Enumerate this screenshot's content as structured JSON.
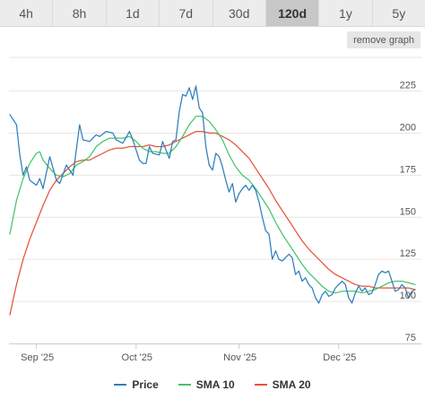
{
  "range_tabs": {
    "items": [
      {
        "label": "4h",
        "active": false
      },
      {
        "label": "8h",
        "active": false
      },
      {
        "label": "1d",
        "active": false
      },
      {
        "label": "7d",
        "active": false
      },
      {
        "label": "30d",
        "active": false
      },
      {
        "label": "120d",
        "active": true
      },
      {
        "label": "1y",
        "active": false
      },
      {
        "label": "5y",
        "active": false
      }
    ]
  },
  "remove_graph_label": "remove graph",
  "chart_data": {
    "type": "line",
    "title": "",
    "xlabel": "",
    "ylabel": "",
    "grid": true,
    "legend_position": "bottom",
    "x_ticks": [
      "Sep '25",
      "Oct '25",
      "Nov '25",
      "Dec '25"
    ],
    "x_range": [
      "2025-08-24",
      "2025-12-24"
    ],
    "y_ticks": [
      75,
      100,
      125,
      150,
      175,
      200,
      225
    ],
    "ylim": [
      75,
      245
    ],
    "series": [
      {
        "name": "Price",
        "color": "#2f7ebc",
        "points": [
          [
            "2025-08-24",
            211
          ],
          [
            "2025-08-26",
            205
          ],
          [
            "2025-08-27",
            187
          ],
          [
            "2025-08-28",
            175
          ],
          [
            "2025-08-29",
            180
          ],
          [
            "2025-08-30",
            172
          ],
          [
            "2025-09-01",
            169
          ],
          [
            "2025-09-02",
            173
          ],
          [
            "2025-09-03",
            167
          ],
          [
            "2025-09-05",
            186
          ],
          [
            "2025-09-07",
            172
          ],
          [
            "2025-09-08",
            170
          ],
          [
            "2025-09-10",
            181
          ],
          [
            "2025-09-12",
            175
          ],
          [
            "2025-09-14",
            205
          ],
          [
            "2025-09-15",
            196
          ],
          [
            "2025-09-17",
            195
          ],
          [
            "2025-09-19",
            199
          ],
          [
            "2025-09-20",
            198
          ],
          [
            "2025-09-22",
            201
          ],
          [
            "2025-09-24",
            200
          ],
          [
            "2025-09-25",
            196
          ],
          [
            "2025-09-27",
            194
          ],
          [
            "2025-09-29",
            201
          ],
          [
            "2025-09-30",
            196
          ],
          [
            "2025-10-01",
            190
          ],
          [
            "2025-10-02",
            184
          ],
          [
            "2025-10-03",
            182
          ],
          [
            "2025-10-04",
            182
          ],
          [
            "2025-10-05",
            192
          ],
          [
            "2025-10-06",
            188
          ],
          [
            "2025-10-08",
            187
          ],
          [
            "2025-10-09",
            195
          ],
          [
            "2025-10-10",
            190
          ],
          [
            "2025-10-11",
            185
          ],
          [
            "2025-10-12",
            195
          ],
          [
            "2025-10-13",
            196
          ],
          [
            "2025-10-14",
            213
          ],
          [
            "2025-10-15",
            223
          ],
          [
            "2025-10-16",
            222
          ],
          [
            "2025-10-17",
            227
          ],
          [
            "2025-10-18",
            220
          ],
          [
            "2025-10-19",
            228
          ],
          [
            "2025-10-20",
            215
          ],
          [
            "2025-10-21",
            212
          ],
          [
            "2025-10-22",
            192
          ],
          [
            "2025-10-23",
            181
          ],
          [
            "2025-10-24",
            178
          ],
          [
            "2025-10-25",
            188
          ],
          [
            "2025-10-26",
            186
          ],
          [
            "2025-10-27",
            180
          ],
          [
            "2025-10-28",
            172
          ],
          [
            "2025-10-29",
            165
          ],
          [
            "2025-10-30",
            170
          ],
          [
            "2025-10-31",
            159
          ],
          [
            "2025-11-01",
            164
          ],
          [
            "2025-11-02",
            167
          ],
          [
            "2025-11-03",
            169
          ],
          [
            "2025-11-04",
            166
          ],
          [
            "2025-11-05",
            169
          ],
          [
            "2025-11-06",
            166
          ],
          [
            "2025-11-07",
            159
          ],
          [
            "2025-11-08",
            150
          ],
          [
            "2025-11-09",
            142
          ],
          [
            "2025-11-10",
            140
          ],
          [
            "2025-11-11",
            125
          ],
          [
            "2025-11-12",
            130
          ],
          [
            "2025-11-13",
            125
          ],
          [
            "2025-11-14",
            124
          ],
          [
            "2025-11-15",
            126
          ],
          [
            "2025-11-16",
            128
          ],
          [
            "2025-11-17",
            126
          ],
          [
            "2025-11-18",
            116
          ],
          [
            "2025-11-19",
            118
          ],
          [
            "2025-11-20",
            112
          ],
          [
            "2025-11-21",
            114
          ],
          [
            "2025-11-22",
            110
          ],
          [
            "2025-11-23",
            108
          ],
          [
            "2025-11-24",
            102
          ],
          [
            "2025-11-25",
            99
          ],
          [
            "2025-11-26",
            104
          ],
          [
            "2025-11-27",
            106
          ],
          [
            "2025-11-28",
            103
          ],
          [
            "2025-11-29",
            104
          ],
          [
            "2025-11-30",
            108
          ],
          [
            "2025-12-01",
            110
          ],
          [
            "2025-12-02",
            112
          ],
          [
            "2025-12-03",
            110
          ],
          [
            "2025-12-04",
            102
          ],
          [
            "2025-12-05",
            99
          ],
          [
            "2025-12-06",
            105
          ],
          [
            "2025-12-07",
            109
          ],
          [
            "2025-12-08",
            106
          ],
          [
            "2025-12-09",
            108
          ],
          [
            "2025-12-10",
            104
          ],
          [
            "2025-12-11",
            105
          ],
          [
            "2025-12-12",
            110
          ],
          [
            "2025-12-13",
            116
          ],
          [
            "2025-12-14",
            118
          ],
          [
            "2025-12-15",
            117
          ],
          [
            "2025-12-16",
            118
          ],
          [
            "2025-12-17",
            112
          ],
          [
            "2025-12-18",
            106
          ],
          [
            "2025-12-19",
            107
          ],
          [
            "2025-12-20",
            110
          ],
          [
            "2025-12-21",
            108
          ],
          [
            "2025-12-22",
            102
          ],
          [
            "2025-12-23",
            106
          ],
          [
            "2025-12-24",
            107
          ]
        ]
      },
      {
        "name": "SMA 10",
        "color": "#45c46a",
        "points": [
          [
            "2025-08-24",
            140
          ],
          [
            "2025-08-26",
            160
          ],
          [
            "2025-08-28",
            173
          ],
          [
            "2025-08-30",
            182
          ],
          [
            "2025-09-01",
            188
          ],
          [
            "2025-09-02",
            189
          ],
          [
            "2025-09-03",
            184
          ],
          [
            "2025-09-05",
            179
          ],
          [
            "2025-09-07",
            175
          ],
          [
            "2025-09-09",
            174
          ],
          [
            "2025-09-11",
            176
          ],
          [
            "2025-09-13",
            181
          ],
          [
            "2025-09-15",
            183
          ],
          [
            "2025-09-17",
            186
          ],
          [
            "2025-09-19",
            192
          ],
          [
            "2025-09-21",
            195
          ],
          [
            "2025-09-23",
            197
          ],
          [
            "2025-09-25",
            197
          ],
          [
            "2025-09-27",
            197
          ],
          [
            "2025-09-29",
            198
          ],
          [
            "2025-10-01",
            195
          ],
          [
            "2025-10-03",
            191
          ],
          [
            "2025-10-05",
            189
          ],
          [
            "2025-10-07",
            189
          ],
          [
            "2025-10-09",
            188
          ],
          [
            "2025-10-11",
            188
          ],
          [
            "2025-10-13",
            192
          ],
          [
            "2025-10-15",
            198
          ],
          [
            "2025-10-17",
            205
          ],
          [
            "2025-10-19",
            210
          ],
          [
            "2025-10-21",
            210
          ],
          [
            "2025-10-23",
            207
          ],
          [
            "2025-10-25",
            202
          ],
          [
            "2025-10-27",
            196
          ],
          [
            "2025-10-29",
            187
          ],
          [
            "2025-10-31",
            180
          ],
          [
            "2025-11-02",
            175
          ],
          [
            "2025-11-04",
            172
          ],
          [
            "2025-11-06",
            167
          ],
          [
            "2025-11-08",
            161
          ],
          [
            "2025-11-10",
            155
          ],
          [
            "2025-11-12",
            147
          ],
          [
            "2025-11-14",
            140
          ],
          [
            "2025-11-16",
            134
          ],
          [
            "2025-11-18",
            128
          ],
          [
            "2025-11-20",
            122
          ],
          [
            "2025-11-22",
            117
          ],
          [
            "2025-11-24",
            113
          ],
          [
            "2025-11-26",
            109
          ],
          [
            "2025-11-28",
            106
          ],
          [
            "2025-11-30",
            105
          ],
          [
            "2025-12-02",
            106
          ],
          [
            "2025-12-04",
            106
          ],
          [
            "2025-12-06",
            106
          ],
          [
            "2025-12-08",
            105
          ],
          [
            "2025-12-10",
            106
          ],
          [
            "2025-12-12",
            107
          ],
          [
            "2025-12-14",
            109
          ],
          [
            "2025-12-16",
            111
          ],
          [
            "2025-12-18",
            112
          ],
          [
            "2025-12-20",
            112
          ],
          [
            "2025-12-22",
            111
          ],
          [
            "2025-12-24",
            110
          ]
        ]
      },
      {
        "name": "SMA 20",
        "color": "#e5533b",
        "points": [
          [
            "2025-08-24",
            92
          ],
          [
            "2025-08-26",
            110
          ],
          [
            "2025-08-28",
            125
          ],
          [
            "2025-08-30",
            137
          ],
          [
            "2025-09-01",
            147
          ],
          [
            "2025-09-03",
            157
          ],
          [
            "2025-09-05",
            166
          ],
          [
            "2025-09-07",
            172
          ],
          [
            "2025-09-09",
            176
          ],
          [
            "2025-09-11",
            180
          ],
          [
            "2025-09-13",
            183
          ],
          [
            "2025-09-15",
            184
          ],
          [
            "2025-09-17",
            184
          ],
          [
            "2025-09-19",
            186
          ],
          [
            "2025-09-21",
            188
          ],
          [
            "2025-09-23",
            190
          ],
          [
            "2025-09-25",
            191
          ],
          [
            "2025-09-27",
            191
          ],
          [
            "2025-09-29",
            192
          ],
          [
            "2025-10-01",
            192
          ],
          [
            "2025-10-03",
            192
          ],
          [
            "2025-10-05",
            193
          ],
          [
            "2025-10-07",
            192
          ],
          [
            "2025-10-09",
            192
          ],
          [
            "2025-10-11",
            193
          ],
          [
            "2025-10-13",
            195
          ],
          [
            "2025-10-15",
            197
          ],
          [
            "2025-10-17",
            199
          ],
          [
            "2025-10-19",
            201
          ],
          [
            "2025-10-21",
            201
          ],
          [
            "2025-10-23",
            200
          ],
          [
            "2025-10-25",
            200
          ],
          [
            "2025-10-27",
            198
          ],
          [
            "2025-10-29",
            196
          ],
          [
            "2025-10-31",
            193
          ],
          [
            "2025-11-02",
            189
          ],
          [
            "2025-11-04",
            185
          ],
          [
            "2025-11-06",
            179
          ],
          [
            "2025-11-08",
            173
          ],
          [
            "2025-11-10",
            167
          ],
          [
            "2025-11-12",
            160
          ],
          [
            "2025-11-14",
            154
          ],
          [
            "2025-11-16",
            148
          ],
          [
            "2025-11-18",
            142
          ],
          [
            "2025-11-20",
            136
          ],
          [
            "2025-11-22",
            131
          ],
          [
            "2025-11-24",
            127
          ],
          [
            "2025-11-26",
            123
          ],
          [
            "2025-11-28",
            119
          ],
          [
            "2025-11-30",
            116
          ],
          [
            "2025-12-02",
            114
          ],
          [
            "2025-12-04",
            112
          ],
          [
            "2025-12-06",
            110
          ],
          [
            "2025-12-08",
            109
          ],
          [
            "2025-12-10",
            109
          ],
          [
            "2025-12-12",
            108
          ],
          [
            "2025-12-14",
            108
          ],
          [
            "2025-12-16",
            108
          ],
          [
            "2025-12-18",
            108
          ],
          [
            "2025-12-20",
            108
          ],
          [
            "2025-12-22",
            108
          ],
          [
            "2025-12-24",
            107
          ]
        ]
      }
    ]
  }
}
